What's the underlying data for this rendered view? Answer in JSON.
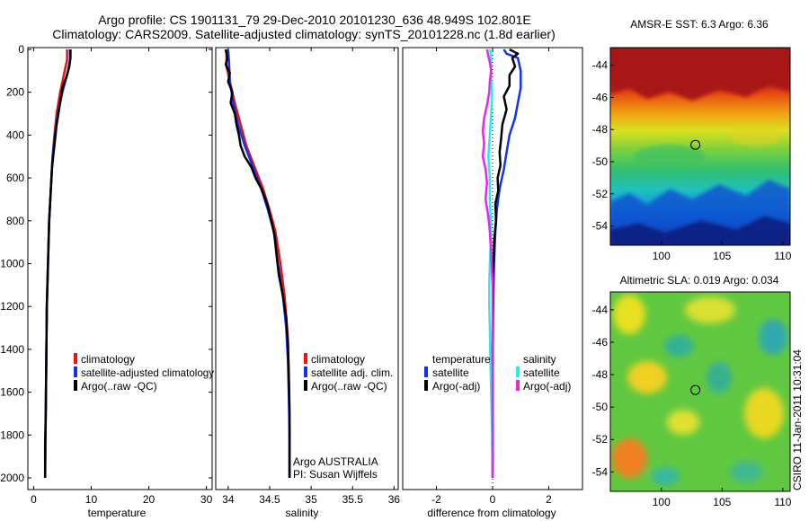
{
  "title_line1": "Argo profile: CS 1901131_79 29-Dec-2010 20101230_636 48.949S 102.801E",
  "title_line2": "Climatology: CARS2009. Satellite-adjusted climatology: synTS_20101228.nc (1.8d earlier)",
  "side_stamp": "CSIRO 11-Jan-2011 10:31:04",
  "colors": {
    "red": "#ee1111",
    "blue": "#1133ee",
    "black": "#000000",
    "cyan": "#22eeee",
    "magenta": "#ee22ee"
  },
  "chart_data": [
    {
      "type": "line",
      "id": "temperature",
      "xlabel": "temperature",
      "xlim": [
        -1,
        31
      ],
      "xticks": [
        "0",
        "10",
        "20",
        "30"
      ],
      "xtick_values": [
        0,
        10,
        20,
        30
      ],
      "ylim": [
        0,
        2080
      ],
      "yticks": [
        "0",
        "200",
        "400",
        "600",
        "800",
        "1000",
        "1200",
        "1400",
        "1600",
        "1800",
        "2000"
      ],
      "legend": [
        "climatology",
        "satellite-adjusted climatology",
        "Argo(..raw -QC)"
      ],
      "series": [
        {
          "name": "climatology",
          "color": "red",
          "points": [
            [
              5.8,
              0
            ],
            [
              5.8,
              50
            ],
            [
              5.4,
              100
            ],
            [
              4.6,
              200
            ],
            [
              4.0,
              300
            ],
            [
              3.6,
              400
            ],
            [
              3.3,
              500
            ],
            [
              3.0,
              650
            ],
            [
              2.7,
              800
            ],
            [
              2.5,
              1000
            ],
            [
              2.3,
              1200
            ],
            [
              2.2,
              1450
            ],
            [
              2.1,
              1700
            ],
            [
              2.0,
              2000
            ]
          ]
        },
        {
          "name": "satellite-adjusted climatology",
          "color": "blue",
          "points": [
            [
              6.3,
              0
            ],
            [
              6.3,
              50
            ],
            [
              6.0,
              100
            ],
            [
              5.0,
              200
            ],
            [
              4.2,
              300
            ],
            [
              3.7,
              400
            ],
            [
              3.3,
              500
            ],
            [
              3.0,
              650
            ],
            [
              2.7,
              800
            ],
            [
              2.5,
              1000
            ],
            [
              2.3,
              1200
            ],
            [
              2.2,
              1450
            ],
            [
              2.1,
              1700
            ],
            [
              2.0,
              2000
            ]
          ]
        },
        {
          "name": "Argo(..raw -QC)",
          "color": "black",
          "points": [
            [
              6.4,
              0
            ],
            [
              6.4,
              40
            ],
            [
              6.2,
              80
            ],
            [
              5.8,
              120
            ],
            [
              5.0,
              180
            ],
            [
              4.6,
              250
            ],
            [
              4.0,
              350
            ],
            [
              3.6,
              450
            ],
            [
              3.2,
              550
            ],
            [
              3.0,
              650
            ],
            [
              2.7,
              800
            ],
            [
              2.5,
              1000
            ],
            [
              2.3,
              1200
            ],
            [
              2.2,
              1450
            ],
            [
              2.1,
              1700
            ],
            [
              2.0,
              1850
            ],
            [
              2.0,
              2000
            ]
          ]
        }
      ]
    },
    {
      "type": "line",
      "id": "salinity",
      "xlabel": "salinity",
      "xlim": [
        33.85,
        36.05
      ],
      "xticks": [
        "34",
        "34.5",
        "35",
        "35.5",
        "36"
      ],
      "xtick_values": [
        34,
        34.5,
        35,
        35.5,
        36
      ],
      "ylim": [
        0,
        2080
      ],
      "legend": [
        "climatology",
        "satellite adj. clim.",
        "Argo(..raw -QC)"
      ],
      "annotation": [
        "Argo AUSTRALIA",
        "PI: Susan Wijffels"
      ],
      "series": [
        {
          "name": "climatology",
          "color": "red",
          "points": [
            [
              33.98,
              0
            ],
            [
              33.98,
              80
            ],
            [
              34.02,
              150
            ],
            [
              34.08,
              250
            ],
            [
              34.15,
              350
            ],
            [
              34.22,
              450
            ],
            [
              34.32,
              550
            ],
            [
              34.42,
              650
            ],
            [
              34.5,
              750
            ],
            [
              34.57,
              850
            ],
            [
              34.63,
              1000
            ],
            [
              34.68,
              1150
            ],
            [
              34.72,
              1350
            ],
            [
              34.73,
              1500
            ],
            [
              34.74,
              1700
            ],
            [
              34.74,
              2000
            ]
          ]
        },
        {
          "name": "satellite adj. clim.",
          "color": "blue",
          "points": [
            [
              34.0,
              0
            ],
            [
              34.01,
              60
            ],
            [
              34.02,
              150
            ],
            [
              34.06,
              250
            ],
            [
              34.12,
              350
            ],
            [
              34.2,
              450
            ],
            [
              34.3,
              550
            ],
            [
              34.4,
              650
            ],
            [
              34.48,
              750
            ],
            [
              34.55,
              850
            ],
            [
              34.6,
              1000
            ],
            [
              34.66,
              1150
            ],
            [
              34.7,
              1300
            ],
            [
              34.72,
              1450
            ],
            [
              34.73,
              1600
            ],
            [
              34.74,
              1800
            ],
            [
              34.74,
              2000
            ]
          ]
        },
        {
          "name": "Argo(..raw -QC)",
          "color": "black",
          "points": [
            [
              33.97,
              0
            ],
            [
              33.99,
              40
            ],
            [
              33.97,
              70
            ],
            [
              34.02,
              110
            ],
            [
              34.0,
              150
            ],
            [
              34.05,
              200
            ],
            [
              34.03,
              250
            ],
            [
              34.08,
              300
            ],
            [
              34.1,
              350
            ],
            [
              34.13,
              400
            ],
            [
              34.15,
              450
            ],
            [
              34.2,
              500
            ],
            [
              34.28,
              550
            ],
            [
              34.33,
              600
            ],
            [
              34.4,
              650
            ],
            [
              34.47,
              720
            ],
            [
              34.52,
              800
            ],
            [
              34.56,
              870
            ],
            [
              34.58,
              950
            ],
            [
              34.61,
              1050
            ],
            [
              34.66,
              1150
            ],
            [
              34.7,
              1250
            ],
            [
              34.72,
              1380
            ],
            [
              34.73,
              1500
            ],
            [
              34.74,
              1700
            ],
            [
              34.74,
              2000
            ]
          ]
        }
      ]
    },
    {
      "type": "line",
      "id": "difference",
      "xlabel": "difference from climatology",
      "xlim": [
        -3.2,
        3.2
      ],
      "xticks": [
        "-2",
        "0",
        "2"
      ],
      "xtick_values": [
        -2,
        0,
        2
      ],
      "ylim": [
        0,
        2080
      ],
      "legend_headers": [
        "temperature",
        "salinity"
      ],
      "legend": [
        "satellite",
        "Argo(-adj)",
        "satellite",
        "Argo(-adj)"
      ],
      "series": [
        {
          "name": "temperature satellite",
          "color": "blue",
          "points": [
            [
              0.4,
              0
            ],
            [
              0.5,
              20
            ],
            [
              0.9,
              40
            ],
            [
              1.0,
              100
            ],
            [
              1.0,
              180
            ],
            [
              0.9,
              250
            ],
            [
              0.8,
              320
            ],
            [
              0.6,
              400
            ],
            [
              0.5,
              480
            ],
            [
              0.4,
              560
            ],
            [
              0.25,
              650
            ],
            [
              0.15,
              750
            ],
            [
              0.1,
              850
            ],
            [
              0.05,
              1000
            ],
            [
              0.02,
              1200
            ],
            [
              0.0,
              1500
            ],
            [
              0.0,
              2000
            ]
          ]
        },
        {
          "name": "temperature Argo(-adj)",
          "color": "black",
          "points": [
            [
              0.6,
              0
            ],
            [
              0.9,
              20
            ],
            [
              0.7,
              40
            ],
            [
              0.8,
              80
            ],
            [
              0.6,
              120
            ],
            [
              0.6,
              170
            ],
            [
              0.4,
              220
            ],
            [
              0.5,
              280
            ],
            [
              0.35,
              350
            ],
            [
              0.3,
              420
            ],
            [
              0.25,
              480
            ],
            [
              0.28,
              540
            ],
            [
              0.18,
              600
            ],
            [
              0.2,
              660
            ],
            [
              0.1,
              720
            ],
            [
              0.12,
              800
            ],
            [
              0.05,
              900
            ],
            [
              0.02,
              1100
            ],
            [
              0.0,
              1400
            ],
            [
              0.0,
              2000
            ]
          ]
        },
        {
          "name": "salinity satellite",
          "color": "cyan",
          "points": [
            [
              -0.1,
              0
            ],
            [
              -0.05,
              30
            ],
            [
              -0.05,
              100
            ],
            [
              -0.02,
              200
            ],
            [
              -0.05,
              300
            ],
            [
              -0.1,
              400
            ],
            [
              -0.15,
              500
            ],
            [
              -0.1,
              600
            ],
            [
              -0.1,
              700
            ],
            [
              -0.05,
              850
            ],
            [
              -0.1,
              1000
            ],
            [
              -0.12,
              1100
            ],
            [
              -0.12,
              1200
            ],
            [
              -0.1,
              1300
            ],
            [
              -0.08,
              1450
            ],
            [
              -0.05,
              1600
            ],
            [
              -0.02,
              1800
            ],
            [
              0.0,
              2000
            ]
          ]
        },
        {
          "name": "salinity Argo(-adj)",
          "color": "magenta",
          "points": [
            [
              -0.2,
              0
            ],
            [
              -0.1,
              60
            ],
            [
              -0.05,
              100
            ],
            [
              -0.1,
              150
            ],
            [
              -0.12,
              200
            ],
            [
              -0.2,
              260
            ],
            [
              -0.3,
              320
            ],
            [
              -0.35,
              380
            ],
            [
              -0.3,
              440
            ],
            [
              -0.35,
              500
            ],
            [
              -0.25,
              560
            ],
            [
              -0.2,
              620
            ],
            [
              -0.25,
              700
            ],
            [
              -0.15,
              780
            ],
            [
              -0.1,
              850
            ],
            [
              -0.05,
              950
            ],
            [
              0.0,
              1100
            ],
            [
              0.0,
              2000
            ]
          ]
        }
      ]
    },
    {
      "type": "heatmap",
      "id": "sst",
      "title": "AMSR-E SST: 6.3 Argo: 6.36",
      "xlim": [
        95.8,
        110.6
      ],
      "ylim": [
        -55.2,
        -42.9
      ],
      "xticks": [
        "100",
        "105",
        "110"
      ],
      "xtick_values": [
        100,
        105,
        110
      ],
      "yticks": [
        "-44",
        "-46",
        "-48",
        "-50",
        "-52",
        "-54"
      ],
      "ytick_values": [
        -44,
        -46,
        -48,
        -50,
        -52,
        -54
      ],
      "marker": [
        102.801,
        -48.949
      ]
    },
    {
      "type": "heatmap",
      "id": "sla",
      "title": "Altimetric SLA: 0.019 Argo: 0.034",
      "xlim": [
        95.8,
        110.6
      ],
      "ylim": [
        -55.2,
        -42.9
      ],
      "xticks": [
        "100",
        "105",
        "110"
      ],
      "xtick_values": [
        100,
        105,
        110
      ],
      "yticks": [
        "-44",
        "-46",
        "-48",
        "-50",
        "-52",
        "-54"
      ],
      "ytick_values": [
        -44,
        -46,
        -48,
        -50,
        -52,
        -54
      ],
      "marker": [
        102.801,
        -48.949
      ]
    }
  ]
}
